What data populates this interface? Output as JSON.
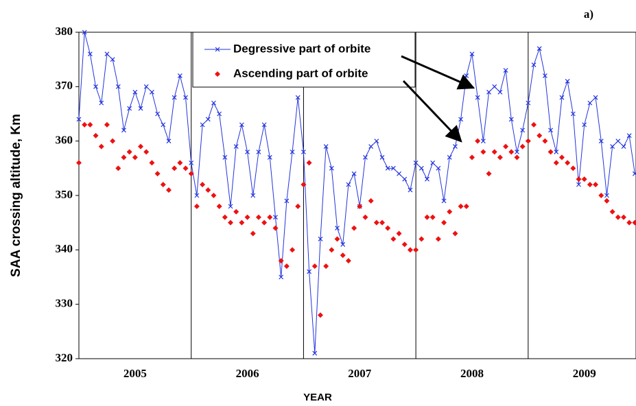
{
  "chart_data": {
    "type": "line",
    "annotation": "a)",
    "x_label": "YEAR",
    "y_label": "SAA crossing altitude, Km",
    "xlim": [
      2005,
      2009.96
    ],
    "ylim": [
      320,
      380
    ],
    "yticks": [
      320,
      330,
      340,
      350,
      360,
      370,
      380
    ],
    "xticks": [
      {
        "value": 2005.5,
        "label": "2005"
      },
      {
        "value": 2006.5,
        "label": "2006"
      },
      {
        "value": 2007.5,
        "label": "2007"
      },
      {
        "value": 2008.5,
        "label": "2008"
      },
      {
        "value": 2009.5,
        "label": "2009"
      }
    ],
    "year_boundaries": [
      2006,
      2007,
      2008,
      2009
    ],
    "x": [
      2005,
      2005.05,
      2005.1,
      2005.15,
      2005.2,
      2005.25,
      2005.3,
      2005.35,
      2005.4,
      2005.45,
      2005.5,
      2005.55,
      2005.6,
      2005.65,
      2005.7,
      2005.75,
      2005.8,
      2005.85,
      2005.9,
      2005.95,
      2006,
      2006.05,
      2006.1,
      2006.15,
      2006.2,
      2006.25,
      2006.3,
      2006.35,
      2006.4,
      2006.45,
      2006.5,
      2006.55,
      2006.6,
      2006.65,
      2006.7,
      2006.75,
      2006.8,
      2006.85,
      2006.9,
      2006.95,
      2007,
      2007.05,
      2007.1,
      2007.15,
      2007.2,
      2007.25,
      2007.3,
      2007.35,
      2007.4,
      2007.45,
      2007.5,
      2007.55,
      2007.6,
      2007.65,
      2007.7,
      2007.75,
      2007.8,
      2007.85,
      2007.9,
      2007.95,
      2008,
      2008.05,
      2008.1,
      2008.15,
      2008.2,
      2008.25,
      2008.3,
      2008.35,
      2008.4,
      2008.45,
      2008.5,
      2008.55,
      2008.6,
      2008.65,
      2008.7,
      2008.75,
      2008.8,
      2008.85,
      2008.9,
      2008.95,
      2009,
      2009.05,
      2009.1,
      2009.15,
      2009.2,
      2009.25,
      2009.3,
      2009.35,
      2009.4,
      2009.45,
      2009.5,
      2009.55,
      2009.6,
      2009.65,
      2009.7,
      2009.75,
      2009.8,
      2009.85,
      2009.9,
      2009.95
    ],
    "series": [
      {
        "name": "Degressive part of orbite",
        "color": "#2233dd",
        "marker": "cross",
        "values": [
          364,
          380,
          376,
          370,
          367,
          376,
          375,
          370,
          362,
          366,
          369,
          366,
          370,
          369,
          365,
          363,
          360,
          368,
          372,
          368,
          356,
          350,
          363,
          364,
          367,
          365,
          357,
          348,
          359,
          363,
          358,
          350,
          358,
          363,
          357,
          346,
          335,
          349,
          358,
          368,
          358,
          336,
          321,
          342,
          359,
          355,
          344,
          341,
          352,
          354,
          348,
          357,
          359,
          360,
          357,
          355,
          355,
          354,
          353,
          351,
          356,
          355,
          353,
          356,
          355,
          349,
          357,
          359,
          364,
          372,
          376,
          368,
          360,
          369,
          370,
          369,
          373,
          364,
          358,
          362,
          367,
          374,
          377,
          372,
          362,
          358,
          368,
          371,
          365,
          352,
          363,
          367,
          368,
          360,
          350,
          359,
          360,
          359,
          361,
          354
        ]
      },
      {
        "name": "Ascending part of orbite",
        "color": "#ee1111",
        "marker": "diamond",
        "values": [
          356,
          363,
          363,
          361,
          359,
          363,
          360,
          355,
          357,
          358,
          357,
          359,
          358,
          356,
          354,
          352,
          351,
          355,
          356,
          355,
          354,
          348,
          352,
          351,
          350,
          348,
          346,
          345,
          347,
          345,
          346,
          343,
          346,
          345,
          346,
          344,
          338,
          337,
          340,
          348,
          352,
          356,
          337,
          328,
          337,
          340,
          342,
          339,
          338,
          344,
          348,
          346,
          349,
          345,
          345,
          344,
          342,
          343,
          341,
          340,
          340,
          342,
          346,
          346,
          342,
          345,
          347,
          343,
          348,
          348,
          357,
          360,
          358,
          354,
          358,
          357,
          359,
          358,
          357,
          359,
          360,
          363,
          361,
          360,
          358,
          356,
          357,
          356,
          355,
          353,
          353,
          352,
          352,
          350,
          349,
          347,
          346,
          346,
          345,
          345
        ]
      }
    ]
  }
}
